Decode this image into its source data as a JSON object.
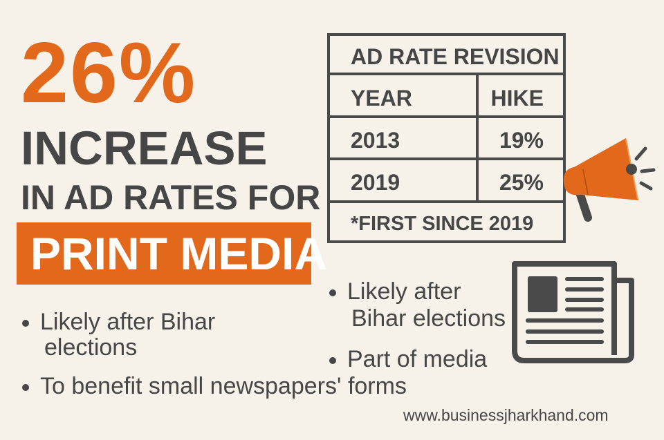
{
  "headline": {
    "percent": "26%",
    "line1": "INCREASE",
    "line2": "IN AD RATES FOR",
    "highlight": "PRINT MEDIA"
  },
  "table": {
    "title": "AD RATE REVISION",
    "headers": [
      "YEAR",
      "HIKE"
    ],
    "rows": [
      [
        "2013",
        "19%"
      ],
      [
        "2019",
        "25%"
      ]
    ],
    "footnote": "*FIRST SINCE 2019"
  },
  "bullets_left": [
    {
      "line1": "Likely after Bihar",
      "line2": "elections"
    },
    {
      "line1": "To benefit small newspapers' forms"
    }
  ],
  "bullets_right": [
    {
      "line1": "Likely after",
      "line2": "Bihar elections"
    },
    {
      "line1": "Part of media"
    }
  ],
  "url": "www.businessjharkhand.com",
  "colors": {
    "accent": "#e2691b",
    "text": "#464646",
    "background": "#f6f1e9"
  }
}
